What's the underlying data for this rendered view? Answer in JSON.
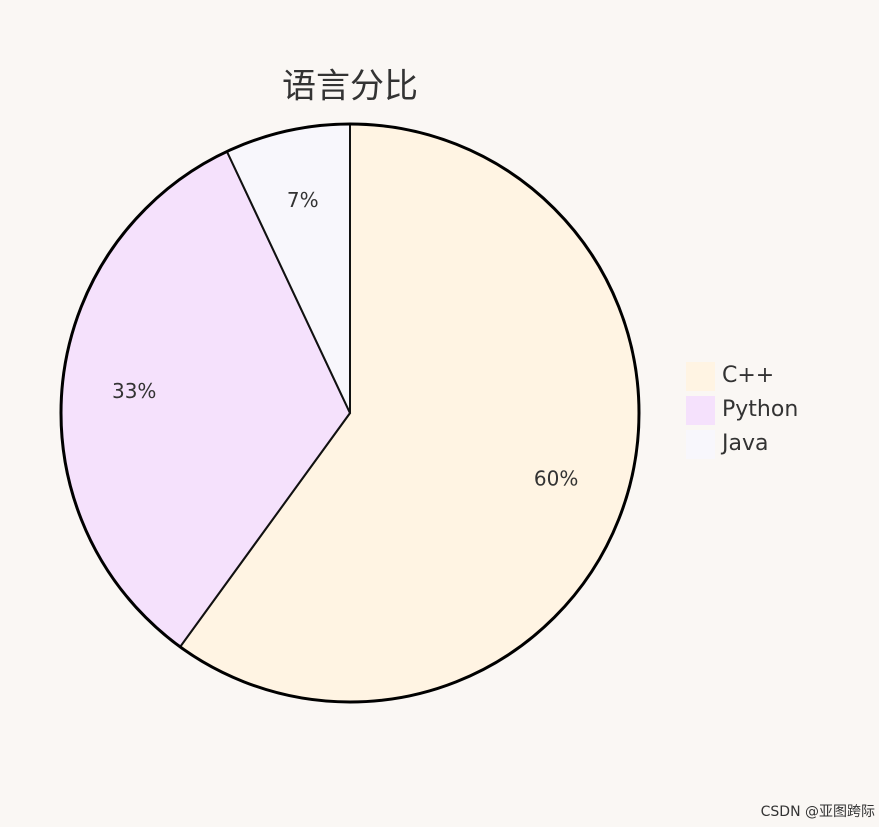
{
  "chart_data": {
    "type": "pie",
    "title": "语言分比",
    "categories": [
      "C++",
      "Python",
      "Java"
    ],
    "values": [
      60,
      33,
      7
    ],
    "value_labels": [
      "60%",
      "33%",
      "7%"
    ],
    "colors": [
      "#fff4e3",
      "#f5e1fc",
      "#f8f7fc"
    ],
    "legend": "right"
  },
  "watermark": "CSDN @亚图跨际"
}
